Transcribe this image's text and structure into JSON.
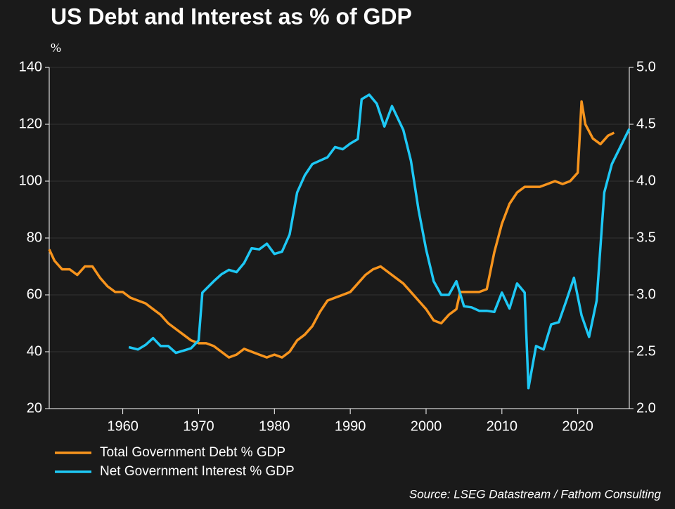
{
  "chart_data": {
    "type": "line",
    "title": "US Debt and Interest as % of GDP",
    "y_label": "%",
    "source": "Source: LSEG Datastream / Fathom Consulting",
    "xlim": [
      1950.3,
      2026.8
    ],
    "xticks": [
      1960,
      1970,
      1980,
      1990,
      2000,
      2010,
      2020
    ],
    "ylim": [
      20,
      140
    ],
    "yticks": [
      20,
      40,
      60,
      80,
      100,
      120,
      140
    ],
    "y2lim": [
      2.0,
      5.0
    ],
    "y2ticks": [
      {
        "value": 2.0,
        "label": "2.0"
      },
      {
        "value": 2.5,
        "label": "2.5"
      },
      {
        "value": 3.0,
        "label": "3.0"
      },
      {
        "value": 3.5,
        "label": "3.5"
      },
      {
        "value": 4.0,
        "label": "4.0"
      },
      {
        "value": 4.5,
        "label": "4.5"
      },
      {
        "value": 5.0,
        "label": "5.0"
      }
    ],
    "grid": true,
    "legend": "bottom-left",
    "series": [
      {
        "name": "Total Government Debt % GDP",
        "color": "#f7941d",
        "x": [
          1950.3,
          1951,
          1952,
          1953,
          1954,
          1955,
          1956,
          1957,
          1958,
          1959,
          1960,
          1961,
          1962,
          1963,
          1964,
          1965,
          1966,
          1967,
          1968,
          1969,
          1970,
          1971,
          1972,
          1973,
          1974,
          1975,
          1976,
          1977,
          1978,
          1979,
          1980,
          1981,
          1982,
          1983,
          1984,
          1985,
          1986,
          1987,
          1988,
          1989,
          1990,
          1991,
          1992,
          1993,
          1994,
          1995,
          1996,
          1997,
          1998,
          1999,
          2000,
          2001,
          2002,
          2003,
          2004,
          2004.5,
          2005,
          2006,
          2007,
          2008,
          2009,
          2010,
          2011,
          2012,
          2013,
          2014,
          2015,
          2016,
          2017,
          2018,
          2019,
          2020,
          2020.5,
          2021,
          2022,
          2023,
          2024,
          2024.8
        ],
        "values": [
          76,
          72,
          69,
          69,
          67,
          70,
          70,
          66,
          63,
          61,
          61,
          59,
          58,
          57,
          55,
          53,
          50,
          48,
          46,
          44,
          43,
          43,
          42,
          40,
          38,
          39,
          41,
          40,
          39,
          38,
          39,
          38,
          40,
          44,
          46,
          49,
          54,
          58,
          59,
          60,
          61,
          64,
          67,
          69,
          70,
          68,
          66,
          64,
          61,
          58,
          55,
          51,
          50,
          53,
          55,
          61,
          61,
          61,
          61,
          62,
          75,
          85,
          92,
          96,
          98,
          98,
          98,
          99,
          100,
          99,
          100,
          103,
          128,
          120,
          115,
          113,
          116,
          117
        ]
      },
      {
        "name": "Net Government Interest % GDP",
        "color": "#1ec8f5",
        "axis": "y2",
        "x": [
          1960.8,
          1962,
          1963,
          1964,
          1965,
          1966,
          1967,
          1968,
          1969,
          1970,
          1970.5,
          1972,
          1973,
          1974,
          1975,
          1976,
          1977,
          1978,
          1979,
          1980,
          1981,
          1982,
          1983,
          1984,
          1985,
          1986,
          1987,
          1988,
          1989,
          1990,
          1991,
          1991.5,
          1992.5,
          1993.5,
          1994.5,
          1995.5,
          1997,
          1998,
          1999,
          2000,
          2001,
          2002,
          2003,
          2004,
          2005,
          2006,
          2007,
          2008,
          2009,
          2010,
          2011,
          2012,
          2013,
          2013.5,
          2014.5,
          2015.5,
          2016.5,
          2017.5,
          2018.5,
          2019.5,
          2020.5,
          2021.5,
          2022.5,
          2023.5,
          2024.5,
          2026.8
        ],
        "values": [
          2.54,
          2.52,
          2.56,
          2.62,
          2.55,
          2.55,
          2.49,
          2.51,
          2.53,
          2.6,
          3.02,
          3.12,
          3.18,
          3.22,
          3.2,
          3.28,
          3.41,
          3.4,
          3.45,
          3.36,
          3.38,
          3.53,
          3.9,
          4.05,
          4.15,
          4.18,
          4.21,
          4.3,
          4.28,
          4.33,
          4.37,
          4.72,
          4.76,
          4.68,
          4.48,
          4.66,
          4.45,
          4.18,
          3.75,
          3.4,
          3.12,
          3.0,
          3.0,
          3.12,
          2.9,
          2.89,
          2.86,
          2.86,
          2.85,
          3.02,
          2.88,
          3.1,
          3.02,
          2.18,
          2.55,
          2.52,
          2.74,
          2.76,
          2.95,
          3.15,
          2.82,
          2.63,
          2.95,
          3.9,
          4.15,
          4.46
        ]
      }
    ]
  }
}
